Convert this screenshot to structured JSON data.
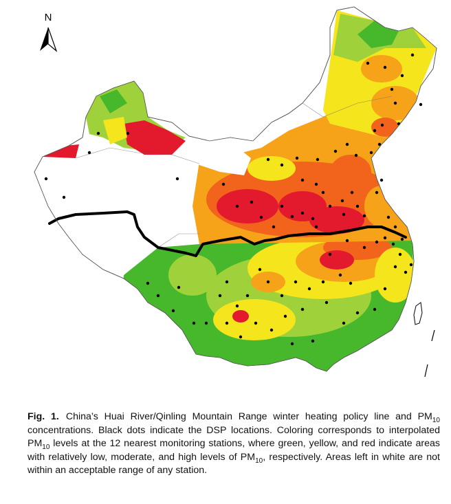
{
  "north_arrow": {
    "label": "N"
  },
  "map": {
    "legend_meaning": {
      "green": "relatively low",
      "yellow": "moderate",
      "red": "high"
    },
    "colors": {
      "low": "#47b82c",
      "low_mid": "#9fd23a",
      "moderate": "#f5e51c",
      "moderate_high": "#f7a31a",
      "high_orange": "#f2641c",
      "high": "#e3192d",
      "out_of_range": "#ffffff",
      "boundary": "#000000",
      "station_dot": "#000000"
    }
  },
  "caption": {
    "fig_label": "Fig. 1.",
    "text_1": "China’s Huai River/Qinling Mountain Range winter heating policy line and PM",
    "sub_1": "10",
    "text_2": " concentrations. Black dots indicate the DSP locations. Coloring corresponds to interpolated PM",
    "sub_2": "10",
    "text_3": " levels at the 12 nearest monitoring stations, where green, yellow, and red indicate areas with relatively low, moderate, and high levels of PM",
    "sub_3": "10",
    "text_4": ", respectively. Areas left in white are not within an acceptable range of any station."
  }
}
